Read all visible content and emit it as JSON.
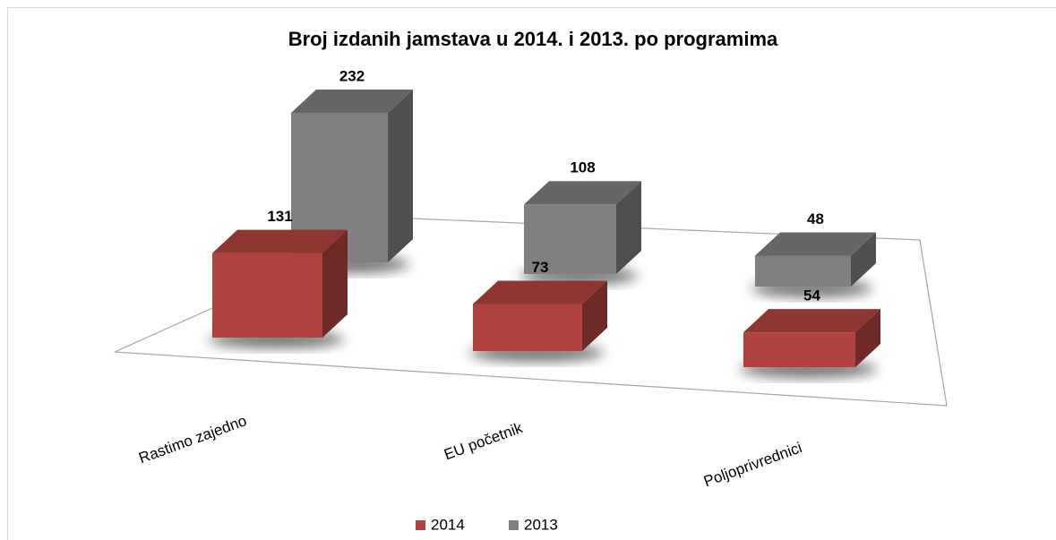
{
  "chart_data": {
    "type": "bar3d",
    "title": "Broj izdanih jamstava u 2014. i 2013. po programima",
    "categories": [
      "Rastimo zajedno",
      "EU početnik",
      "Poljoprivrednici"
    ],
    "series": [
      {
        "name": "2014",
        "color": "#b0433f",
        "values": [
          131,
          73,
          54
        ]
      },
      {
        "name": "2013",
        "color": "#808080",
        "values": [
          232,
          108,
          48
        ]
      }
    ],
    "legend": "bottom"
  }
}
